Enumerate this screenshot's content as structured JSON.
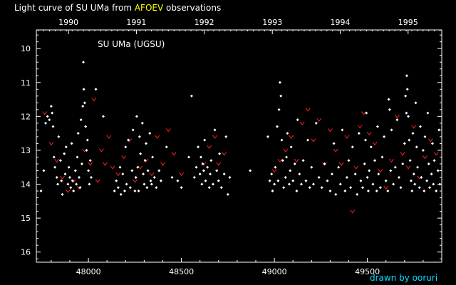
{
  "title": {
    "prefix": "Light curve of SU UMa from ",
    "source": "AFOEV",
    "suffix": " observations"
  },
  "credit": "drawn by ooruri",
  "colors": {
    "background": "#000000",
    "axis": "#ffffff",
    "source_highlight": "#ffff00",
    "credit": "#00e0ff",
    "visual_points": "#ffffff",
    "fainter_than_marks": "#ff2020"
  },
  "chart_data": {
    "type": "scatter",
    "title": "Light curve of SU UMa from AFOEV observations",
    "annotation": "SU UMa (UGSU)",
    "xlabel": "",
    "ylabel": "",
    "xlim": [
      47720,
      49900
    ],
    "ylim": [
      16.3,
      9.45
    ],
    "y_inverted": true,
    "grid": false,
    "x_ticks": [
      48000,
      48500,
      49000,
      49500
    ],
    "y_ticks": [
      10,
      11,
      12,
      13,
      14,
      15,
      16
    ],
    "year_ticks": [
      {
        "label": "1990",
        "jd": 47893
      },
      {
        "label": "1991",
        "jd": 48258
      },
      {
        "label": "1992",
        "jd": 48623
      },
      {
        "label": "1993",
        "jd": 48989
      },
      {
        "label": "1994",
        "jd": 49354
      },
      {
        "label": "1995",
        "jd": 49719
      }
    ],
    "series": [
      {
        "marker": "dot",
        "color": "#ffffff",
        "points": [
          [
            47745,
            14.2
          ],
          [
            47760,
            13.6
          ],
          [
            47770,
            12.2
          ],
          [
            47780,
            12.0
          ],
          [
            47790,
            12.1
          ],
          [
            47800,
            11.7
          ],
          [
            47805,
            11.9
          ],
          [
            47810,
            12.3
          ],
          [
            47815,
            13.2
          ],
          [
            47820,
            13.5
          ],
          [
            47830,
            13.8
          ],
          [
            47835,
            14.0
          ],
          [
            47840,
            12.6
          ],
          [
            47850,
            13.3
          ],
          [
            47855,
            13.9
          ],
          [
            47860,
            14.3
          ],
          [
            47870,
            13.1
          ],
          [
            47875,
            13.7
          ],
          [
            47880,
            12.9
          ],
          [
            47890,
            14.0
          ],
          [
            47895,
            13.5
          ],
          [
            47900,
            13.8
          ],
          [
            47905,
            14.1
          ],
          [
            47910,
            12.8
          ],
          [
            47915,
            13.9
          ],
          [
            47920,
            14.2
          ],
          [
            47930,
            13.6
          ],
          [
            47935,
            14.0
          ],
          [
            47940,
            13.2
          ],
          [
            47945,
            12.5
          ],
          [
            47950,
            13.8
          ],
          [
            47955,
            14.1
          ],
          [
            47960,
            12.1
          ],
          [
            47965,
            13.4
          ],
          [
            47970,
            11.7
          ],
          [
            47973,
            10.4
          ],
          [
            47975,
            11.2
          ],
          [
            47980,
            11.6
          ],
          [
            47985,
            12.3
          ],
          [
            47990,
            13.0
          ],
          [
            47995,
            12.7
          ],
          [
            48000,
            13.6
          ],
          [
            48005,
            14.0
          ],
          [
            48010,
            13.3
          ],
          [
            48015,
            13.8
          ],
          [
            48040,
            11.2
          ],
          [
            48080,
            12.0
          ],
          [
            48140,
            14.2
          ],
          [
            48150,
            13.9
          ],
          [
            48160,
            14.1
          ],
          [
            48170,
            13.5
          ],
          [
            48175,
            14.3
          ],
          [
            48185,
            13.7
          ],
          [
            48195,
            14.2
          ],
          [
            48200,
            12.9
          ],
          [
            48205,
            14.0
          ],
          [
            48215,
            12.7
          ],
          [
            48225,
            14.1
          ],
          [
            48235,
            13.6
          ],
          [
            48240,
            12.4
          ],
          [
            48250,
            14.2
          ],
          [
            48255,
            13.8
          ],
          [
            48260,
            12.0
          ],
          [
            48265,
            13.5
          ],
          [
            48270,
            14.2
          ],
          [
            48275,
            12.6
          ],
          [
            48280,
            13.1
          ],
          [
            48290,
            12.2
          ],
          [
            48295,
            13.7
          ],
          [
            48300,
            14.0
          ],
          [
            48305,
            13.3
          ],
          [
            48310,
            12.8
          ],
          [
            48315,
            14.1
          ],
          [
            48320,
            13.6
          ],
          [
            48330,
            12.5
          ],
          [
            48335,
            13.9
          ],
          [
            48340,
            14.0
          ],
          [
            48345,
            13.2
          ],
          [
            48355,
            13.8
          ],
          [
            48365,
            14.1
          ],
          [
            48380,
            13.6
          ],
          [
            48390,
            13.9
          ],
          [
            48420,
            12.9
          ],
          [
            48450,
            13.8
          ],
          [
            48480,
            13.9
          ],
          [
            48500,
            14.1
          ],
          [
            48540,
            13.2
          ],
          [
            48555,
            11.4
          ],
          [
            48570,
            13.8
          ],
          [
            48580,
            13.5
          ],
          [
            48590,
            12.9
          ],
          [
            48600,
            13.7
          ],
          [
            48605,
            13.2
          ],
          [
            48610,
            14.0
          ],
          [
            48615,
            13.4
          ],
          [
            48620,
            13.6
          ],
          [
            48625,
            12.7
          ],
          [
            48630,
            13.9
          ],
          [
            48640,
            13.5
          ],
          [
            48650,
            14.1
          ],
          [
            48655,
            13.7
          ],
          [
            48660,
            13.3
          ],
          [
            48670,
            14.0
          ],
          [
            48680,
            12.4
          ],
          [
            48690,
            13.6
          ],
          [
            48700,
            13.9
          ],
          [
            48705,
            13.1
          ],
          [
            48715,
            14.1
          ],
          [
            48730,
            13.7
          ],
          [
            48740,
            12.6
          ],
          [
            48750,
            14.3
          ],
          [
            48760,
            13.8
          ],
          [
            48870,
            13.6
          ],
          [
            48965,
            12.6
          ],
          [
            48975,
            13.9
          ],
          [
            48985,
            13.7
          ],
          [
            48990,
            14.2
          ],
          [
            49000,
            14.0
          ],
          [
            49005,
            13.5
          ],
          [
            49015,
            12.3
          ],
          [
            49020,
            13.9
          ],
          [
            49025,
            11.8
          ],
          [
            49030,
            11.0
          ],
          [
            49035,
            11.4
          ],
          [
            49040,
            12.7
          ],
          [
            49045,
            13.3
          ],
          [
            49050,
            14.1
          ],
          [
            49060,
            13.8
          ],
          [
            49065,
            13.2
          ],
          [
            49070,
            12.5
          ],
          [
            49080,
            14.0
          ],
          [
            49085,
            13.6
          ],
          [
            49090,
            12.9
          ],
          [
            49100,
            13.9
          ],
          [
            49110,
            13.4
          ],
          [
            49120,
            14.2
          ],
          [
            49125,
            12.1
          ],
          [
            49135,
            13.7
          ],
          [
            49145,
            14.0
          ],
          [
            49155,
            13.3
          ],
          [
            49170,
            13.9
          ],
          [
            49180,
            12.7
          ],
          [
            49190,
            14.1
          ],
          [
            49200,
            13.5
          ],
          [
            49210,
            14.0
          ],
          [
            49225,
            12.2
          ],
          [
            49240,
            13.8
          ],
          [
            49255,
            14.1
          ],
          [
            49270,
            13.4
          ],
          [
            49285,
            13.9
          ],
          [
            49300,
            14.2
          ],
          [
            49310,
            13.7
          ],
          [
            49320,
            12.8
          ],
          [
            49330,
            14.3
          ],
          [
            49345,
            13.5
          ],
          [
            49355,
            14.0
          ],
          [
            49365,
            12.4
          ],
          [
            49380,
            14.2
          ],
          [
            49390,
            13.8
          ],
          [
            49400,
            13.3
          ],
          [
            49410,
            14.1
          ],
          [
            49420,
            12.9
          ],
          [
            49435,
            13.7
          ],
          [
            49445,
            14.3
          ],
          [
            49455,
            12.5
          ],
          [
            49465,
            13.9
          ],
          [
            49475,
            14.1
          ],
          [
            49485,
            13.4
          ],
          [
            49490,
            12.7
          ],
          [
            49495,
            11.9
          ],
          [
            49500,
            13.8
          ],
          [
            49505,
            14.2
          ],
          [
            49510,
            13.6
          ],
          [
            49520,
            12.9
          ],
          [
            49530,
            14.0
          ],
          [
            49540,
            13.3
          ],
          [
            49550,
            14.2
          ],
          [
            49555,
            12.3
          ],
          [
            49560,
            13.7
          ],
          [
            49570,
            14.1
          ],
          [
            49580,
            13.2
          ],
          [
            49590,
            12.6
          ],
          [
            49600,
            13.9
          ],
          [
            49610,
            14.2
          ],
          [
            49615,
            11.5
          ],
          [
            49620,
            11.8
          ],
          [
            49625,
            13.6
          ],
          [
            49630,
            12.4
          ],
          [
            49640,
            14.0
          ],
          [
            49650,
            13.5
          ],
          [
            49660,
            12.1
          ],
          [
            49670,
            13.8
          ],
          [
            49680,
            14.1
          ],
          [
            49690,
            13.4
          ],
          [
            49700,
            12.8
          ],
          [
            49705,
            11.4
          ],
          [
            49710,
            11.9
          ],
          [
            49712,
            10.8
          ],
          [
            49715,
            11.2
          ],
          [
            49720,
            12.0
          ],
          [
            49725,
            12.7
          ],
          [
            49730,
            13.3
          ],
          [
            49735,
            13.9
          ],
          [
            49740,
            14.2
          ],
          [
            49745,
            12.5
          ],
          [
            49750,
            13.7
          ],
          [
            49755,
            14.0
          ],
          [
            49760,
            11.6
          ],
          [
            49765,
            12.9
          ],
          [
            49770,
            13.5
          ],
          [
            49780,
            14.1
          ],
          [
            49785,
            12.3
          ],
          [
            49790,
            13.8
          ],
          [
            49800,
            13.0
          ],
          [
            49805,
            14.2
          ],
          [
            49810,
            12.6
          ],
          [
            49820,
            13.9
          ],
          [
            49825,
            11.9
          ],
          [
            49830,
            13.4
          ],
          [
            49835,
            14.1
          ],
          [
            49845,
            13.7
          ],
          [
            49850,
            12.8
          ],
          [
            49855,
            14.0
          ],
          [
            49860,
            13.3
          ],
          [
            49870,
            14.2
          ],
          [
            49880,
            13.6
          ],
          [
            49885,
            12.4
          ],
          [
            49890,
            14.0
          ]
        ]
      },
      {
        "marker": "v",
        "color": "#ff2020",
        "points": [
          [
            47765,
            11.9
          ],
          [
            47800,
            12.8
          ],
          [
            47830,
            13.3
          ],
          [
            47860,
            13.8
          ],
          [
            47890,
            14.2
          ],
          [
            47920,
            13.9
          ],
          [
            47950,
            14.1
          ],
          [
            47980,
            13.0
          ],
          [
            48010,
            13.4
          ],
          [
            48030,
            11.5
          ],
          [
            48050,
            13.9
          ],
          [
            48070,
            13.0
          ],
          [
            48090,
            13.4
          ],
          [
            48110,
            12.6
          ],
          [
            48130,
            13.5
          ],
          [
            48160,
            13.7
          ],
          [
            48190,
            13.2
          ],
          [
            48220,
            12.7
          ],
          [
            48250,
            13.9
          ],
          [
            48280,
            13.5
          ],
          [
            48310,
            13.3
          ],
          [
            48340,
            13.7
          ],
          [
            48370,
            12.6
          ],
          [
            48400,
            13.4
          ],
          [
            48430,
            12.4
          ],
          [
            48460,
            13.1
          ],
          [
            48500,
            13.7
          ],
          [
            48620,
            13.4
          ],
          [
            48650,
            12.9
          ],
          [
            48680,
            12.6
          ],
          [
            48700,
            13.4
          ],
          [
            48730,
            13.1
          ],
          [
            49000,
            13.6
          ],
          [
            49030,
            13.3
          ],
          [
            49060,
            13.0
          ],
          [
            49090,
            12.6
          ],
          [
            49120,
            13.3
          ],
          [
            49150,
            12.2
          ],
          [
            49180,
            11.8
          ],
          [
            49210,
            12.7
          ],
          [
            49240,
            12.1
          ],
          [
            49270,
            13.4
          ],
          [
            49300,
            12.4
          ],
          [
            49330,
            13.0
          ],
          [
            49360,
            13.4
          ],
          [
            49390,
            12.6
          ],
          [
            49420,
            14.8
          ],
          [
            49440,
            13.5
          ],
          [
            49460,
            12.3
          ],
          [
            49480,
            11.9
          ],
          [
            49510,
            12.5
          ],
          [
            49540,
            12.8
          ],
          [
            49570,
            13.6
          ],
          [
            49600,
            14.1
          ],
          [
            49630,
            13.3
          ],
          [
            49660,
            12.0
          ],
          [
            49690,
            13.1
          ],
          [
            49720,
            13.5
          ],
          [
            49750,
            12.3
          ],
          [
            49780,
            13.8
          ],
          [
            49810,
            13.2
          ],
          [
            49840,
            12.7
          ],
          [
            49870,
            13.1
          ]
        ]
      }
    ]
  }
}
